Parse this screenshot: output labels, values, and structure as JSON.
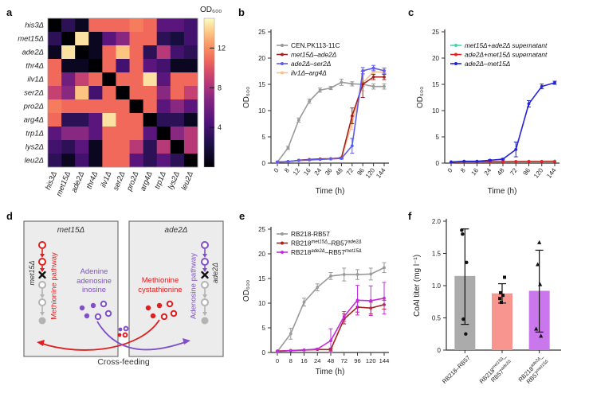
{
  "panels": {
    "a": "a",
    "b": "b",
    "c": "c",
    "d": "d",
    "e": "e",
    "f": "f"
  },
  "chart_data": [
    {
      "id": "a",
      "type": "heatmap",
      "row_labels": [
        "his3Δ",
        "met15Δ",
        "ade2Δ",
        "thr4Δ",
        "ilv1Δ",
        "ser2Δ",
        "pro2Δ",
        "arg4Δ",
        "trp1Δ",
        "lys2Δ",
        "leu2Δ"
      ],
      "col_labels": [
        "his3Δ",
        "met15Δ",
        "ade2Δ",
        "thr4Δ",
        "ilv1Δ",
        "ser2Δ",
        "pro2Δ",
        "arg4Δ",
        "trp1Δ",
        "lys2Δ",
        "leu2Δ"
      ],
      "matrix": [
        [
          0,
          3,
          1,
          10.8,
          10.8,
          10.8,
          11.5,
          10.8,
          5,
          5,
          4
        ],
        [
          3,
          0,
          14.3,
          1,
          5,
          7,
          10.8,
          10.8,
          3,
          2,
          4
        ],
        [
          1,
          14.3,
          0,
          1,
          10.8,
          13.5,
          10.8,
          3,
          8.5,
          4,
          3
        ],
        [
          10.8,
          1,
          1,
          0,
          10.8,
          4,
          10.8,
          5,
          4,
          1,
          1
        ],
        [
          10.8,
          6,
          9,
          10.8,
          0,
          10.8,
          10.8,
          14.3,
          5,
          10.8,
          10.8
        ],
        [
          9,
          7,
          13.5,
          4,
          10.8,
          0,
          10.8,
          10.8,
          7,
          10.8,
          9
        ],
        [
          11.5,
          10.8,
          10.8,
          10.8,
          10.8,
          10.8,
          0,
          10.8,
          5,
          7,
          5
        ],
        [
          10.8,
          3,
          3,
          5,
          14.3,
          10.8,
          10.8,
          0,
          3,
          3,
          1
        ],
        [
          5,
          7,
          7,
          5,
          10.8,
          10.8,
          10.8,
          5,
          0,
          7,
          8.5
        ],
        [
          4,
          3,
          5,
          1,
          10.8,
          10.8,
          8.5,
          3,
          8.5,
          0,
          8.5
        ],
        [
          3,
          1,
          4,
          1,
          10.8,
          10.8,
          5,
          3,
          5,
          3,
          0
        ]
      ],
      "colorbar": {
        "label": "OD₆₀₀",
        "ticks": [
          4,
          8,
          12
        ],
        "vmin": 0,
        "vmax": 15,
        "colormap": "magma"
      }
    },
    {
      "id": "b",
      "type": "line",
      "x_categories": [
        "0",
        "8",
        "12",
        "16",
        "24",
        "36",
        "48",
        "72",
        "96",
        "120",
        "144"
      ],
      "xlabel": "Time (h)",
      "ylabel": "OD₆₀₀",
      "ylim": [
        0,
        25
      ],
      "yticks": [
        0,
        5,
        10,
        15,
        20,
        25
      ],
      "legend_position": "top-left",
      "series": [
        {
          "name": "CEN.PK113-11C",
          "italic": false,
          "color": "#9a9a9a",
          "values": [
            0.2,
            2.9,
            8.2,
            11.8,
            13.9,
            14.3,
            15.4,
            15.1,
            15.0,
            14.6,
            14.6
          ],
          "yerr": [
            0.15,
            0.3,
            0.4,
            0.4,
            0.4,
            0.3,
            0.6,
            0.4,
            0.4,
            0.5,
            0.5
          ]
        },
        {
          "name": "met15Δ–ade2Δ",
          "italic": true,
          "color": "#a42220",
          "values": [
            0.2,
            0.3,
            0.55,
            0.7,
            0.8,
            0.85,
            1.0,
            9.0,
            15.0,
            16.4,
            16.4
          ],
          "yerr": [
            0,
            0,
            0,
            0,
            0,
            0,
            0.15,
            1.5,
            2.5,
            0.5,
            0.5
          ]
        },
        {
          "name": "ade2Δ–ser2Δ",
          "italic": true,
          "color": "#5c5cf0",
          "values": [
            0.2,
            0.3,
            0.5,
            0.6,
            0.7,
            0.8,
            0.9,
            3.3,
            17.6,
            18.1,
            17.6
          ],
          "yerr": [
            0,
            0,
            0,
            0,
            0,
            0,
            0.15,
            1.4,
            0.6,
            0.5,
            0.5
          ]
        },
        {
          "name": "ilv1Δ–arg4Δ",
          "italic": true,
          "color": "#f7c08e",
          "behind": true,
          "values": [
            0.2,
            0.3,
            0.5,
            0.6,
            0.7,
            0.8,
            0.9,
            7.6,
            15.3,
            17.4,
            17.3
          ],
          "yerr": [
            0,
            0,
            0,
            0,
            0,
            0,
            0,
            1.2,
            1.5,
            0.4,
            0.4
          ]
        }
      ]
    },
    {
      "id": "c",
      "type": "line",
      "x_categories": [
        "0",
        "8",
        "16",
        "24",
        "48",
        "72",
        "96",
        "120",
        "144"
      ],
      "xlabel": "Time (h)",
      "ylabel": "OD₆₀₀",
      "ylim": [
        0,
        25
      ],
      "yticks": [
        0,
        5,
        10,
        15,
        20,
        25
      ],
      "legend_position": "top-left",
      "series": [
        {
          "name": "met15Δ+ade2Δ supernatant",
          "italic": true,
          "color": "#41d6ad",
          "values": [
            0.25,
            0.3,
            0.3,
            0.3,
            0.3,
            0.3,
            0.35,
            0.35,
            0.4
          ],
          "yerr": [
            0,
            0,
            0,
            0,
            0,
            0,
            0,
            0,
            0
          ]
        },
        {
          "name": "ade2Δ+met15Δ supernatant",
          "italic": true,
          "color": "#ec1f1f",
          "values": [
            0.2,
            0.25,
            0.25,
            0.25,
            0.25,
            0.3,
            0.3,
            0.3,
            0.3
          ],
          "yerr": [
            0,
            0,
            0,
            0,
            0,
            0,
            0,
            0,
            0
          ]
        },
        {
          "name": "ade2Δ–met15Δ",
          "italic": true,
          "color": "#2323d8",
          "values": [
            0.2,
            0.35,
            0.35,
            0.55,
            0.75,
            2.6,
            11.3,
            14.6,
            15.3
          ],
          "yerr": [
            0,
            0,
            0,
            0.1,
            0.15,
            1.4,
            0.6,
            0.45,
            0.3
          ]
        }
      ]
    },
    {
      "id": "e",
      "type": "line",
      "x_categories": [
        "0",
        "8",
        "16",
        "24",
        "48",
        "72",
        "96",
        "120",
        "144"
      ],
      "xlabel": "Time (h)",
      "ylabel": "OD₆₀₀",
      "ylim": [
        0,
        25
      ],
      "yticks": [
        0,
        5,
        10,
        15,
        20,
        25
      ],
      "legend_position": "top-left",
      "series": [
        {
          "name": "RB218-RB57",
          "italic": false,
          "color": "#9a9a9a",
          "values": [
            0.2,
            3.8,
            10.2,
            13.2,
            15.5,
            15.8,
            15.8,
            15.9,
            17.2
          ],
          "yerr": [
            0.1,
            1.1,
            0.8,
            0.7,
            0.7,
            1.3,
            1.0,
            1.2,
            1.0
          ]
        },
        {
          "name": "RB218^{met15Δ}–RB57^{ade2Δ}",
          "italic": false,
          "color": "#a42220",
          "values": [
            0.3,
            0.4,
            0.5,
            0.6,
            0.6,
            6.8,
            9.2,
            9.0,
            9.7
          ],
          "yerr": [
            0,
            0,
            0,
            0,
            0.3,
            1.0,
            1.0,
            1.2,
            0.9
          ]
        },
        {
          "name": "RB218^{ade2Δ}–RB57^{met15Δ}",
          "italic": false,
          "color": "#c52be0",
          "values": [
            0.2,
            0.4,
            0.5,
            0.7,
            2.4,
            7.3,
            10.6,
            10.5,
            11.0
          ],
          "yerr": [
            0,
            0,
            0,
            0.15,
            2.4,
            1.0,
            3.0,
            3.0,
            3.2
          ]
        }
      ]
    },
    {
      "id": "f",
      "type": "bar",
      "categories": [
        "RB218–RB57",
        "RB218^{met15Δ}–\nRB57^{ade2Δ}",
        "RB218^{ade2Δ}–\nRB57^{met15Δ}"
      ],
      "values": [
        1.15,
        0.88,
        0.92
      ],
      "bar_colors": [
        "#ababab",
        "#f9958f",
        "#ca77ee"
      ],
      "error_low": [
        0.4,
        0.73,
        0.28
      ],
      "error_high": [
        1.88,
        1.03,
        1.55
      ],
      "points": [
        [
          1.86,
          1.8,
          1.36,
          0.48,
          0.25
        ],
        [
          1.13,
          0.89,
          0.85,
          0.8,
          0.74
        ],
        [
          1.67,
          1.33,
          1.02,
          0.33,
          0.22
        ]
      ],
      "point_markers": [
        "circle",
        "square",
        "triangle"
      ],
      "ylabel": "CoAl titer (mg l⁻¹)",
      "ylim": [
        0,
        2
      ],
      "yticks": [
        "0",
        "0.5",
        "1.0",
        "1.5",
        "2.0"
      ]
    }
  ],
  "diagram": {
    "left_box_title": "met15Δ",
    "right_box_title": "ade2Δ",
    "left_gene_label": "met15Δ",
    "left_pathway_label": "Methionine pathway",
    "right_gene_label": "ade2Δ",
    "right_pathway_label": "Adenosine pathway",
    "left_metabolites": "Adenine\nadenosine\ninosine",
    "right_metabolites": "Methionine\ncystathionine",
    "caption": "Cross-feeding",
    "colors": {
      "red": "#df1f1f",
      "purple": "#8050c8",
      "gray": "#b3b3b3",
      "box_fill": "#ececec"
    }
  }
}
